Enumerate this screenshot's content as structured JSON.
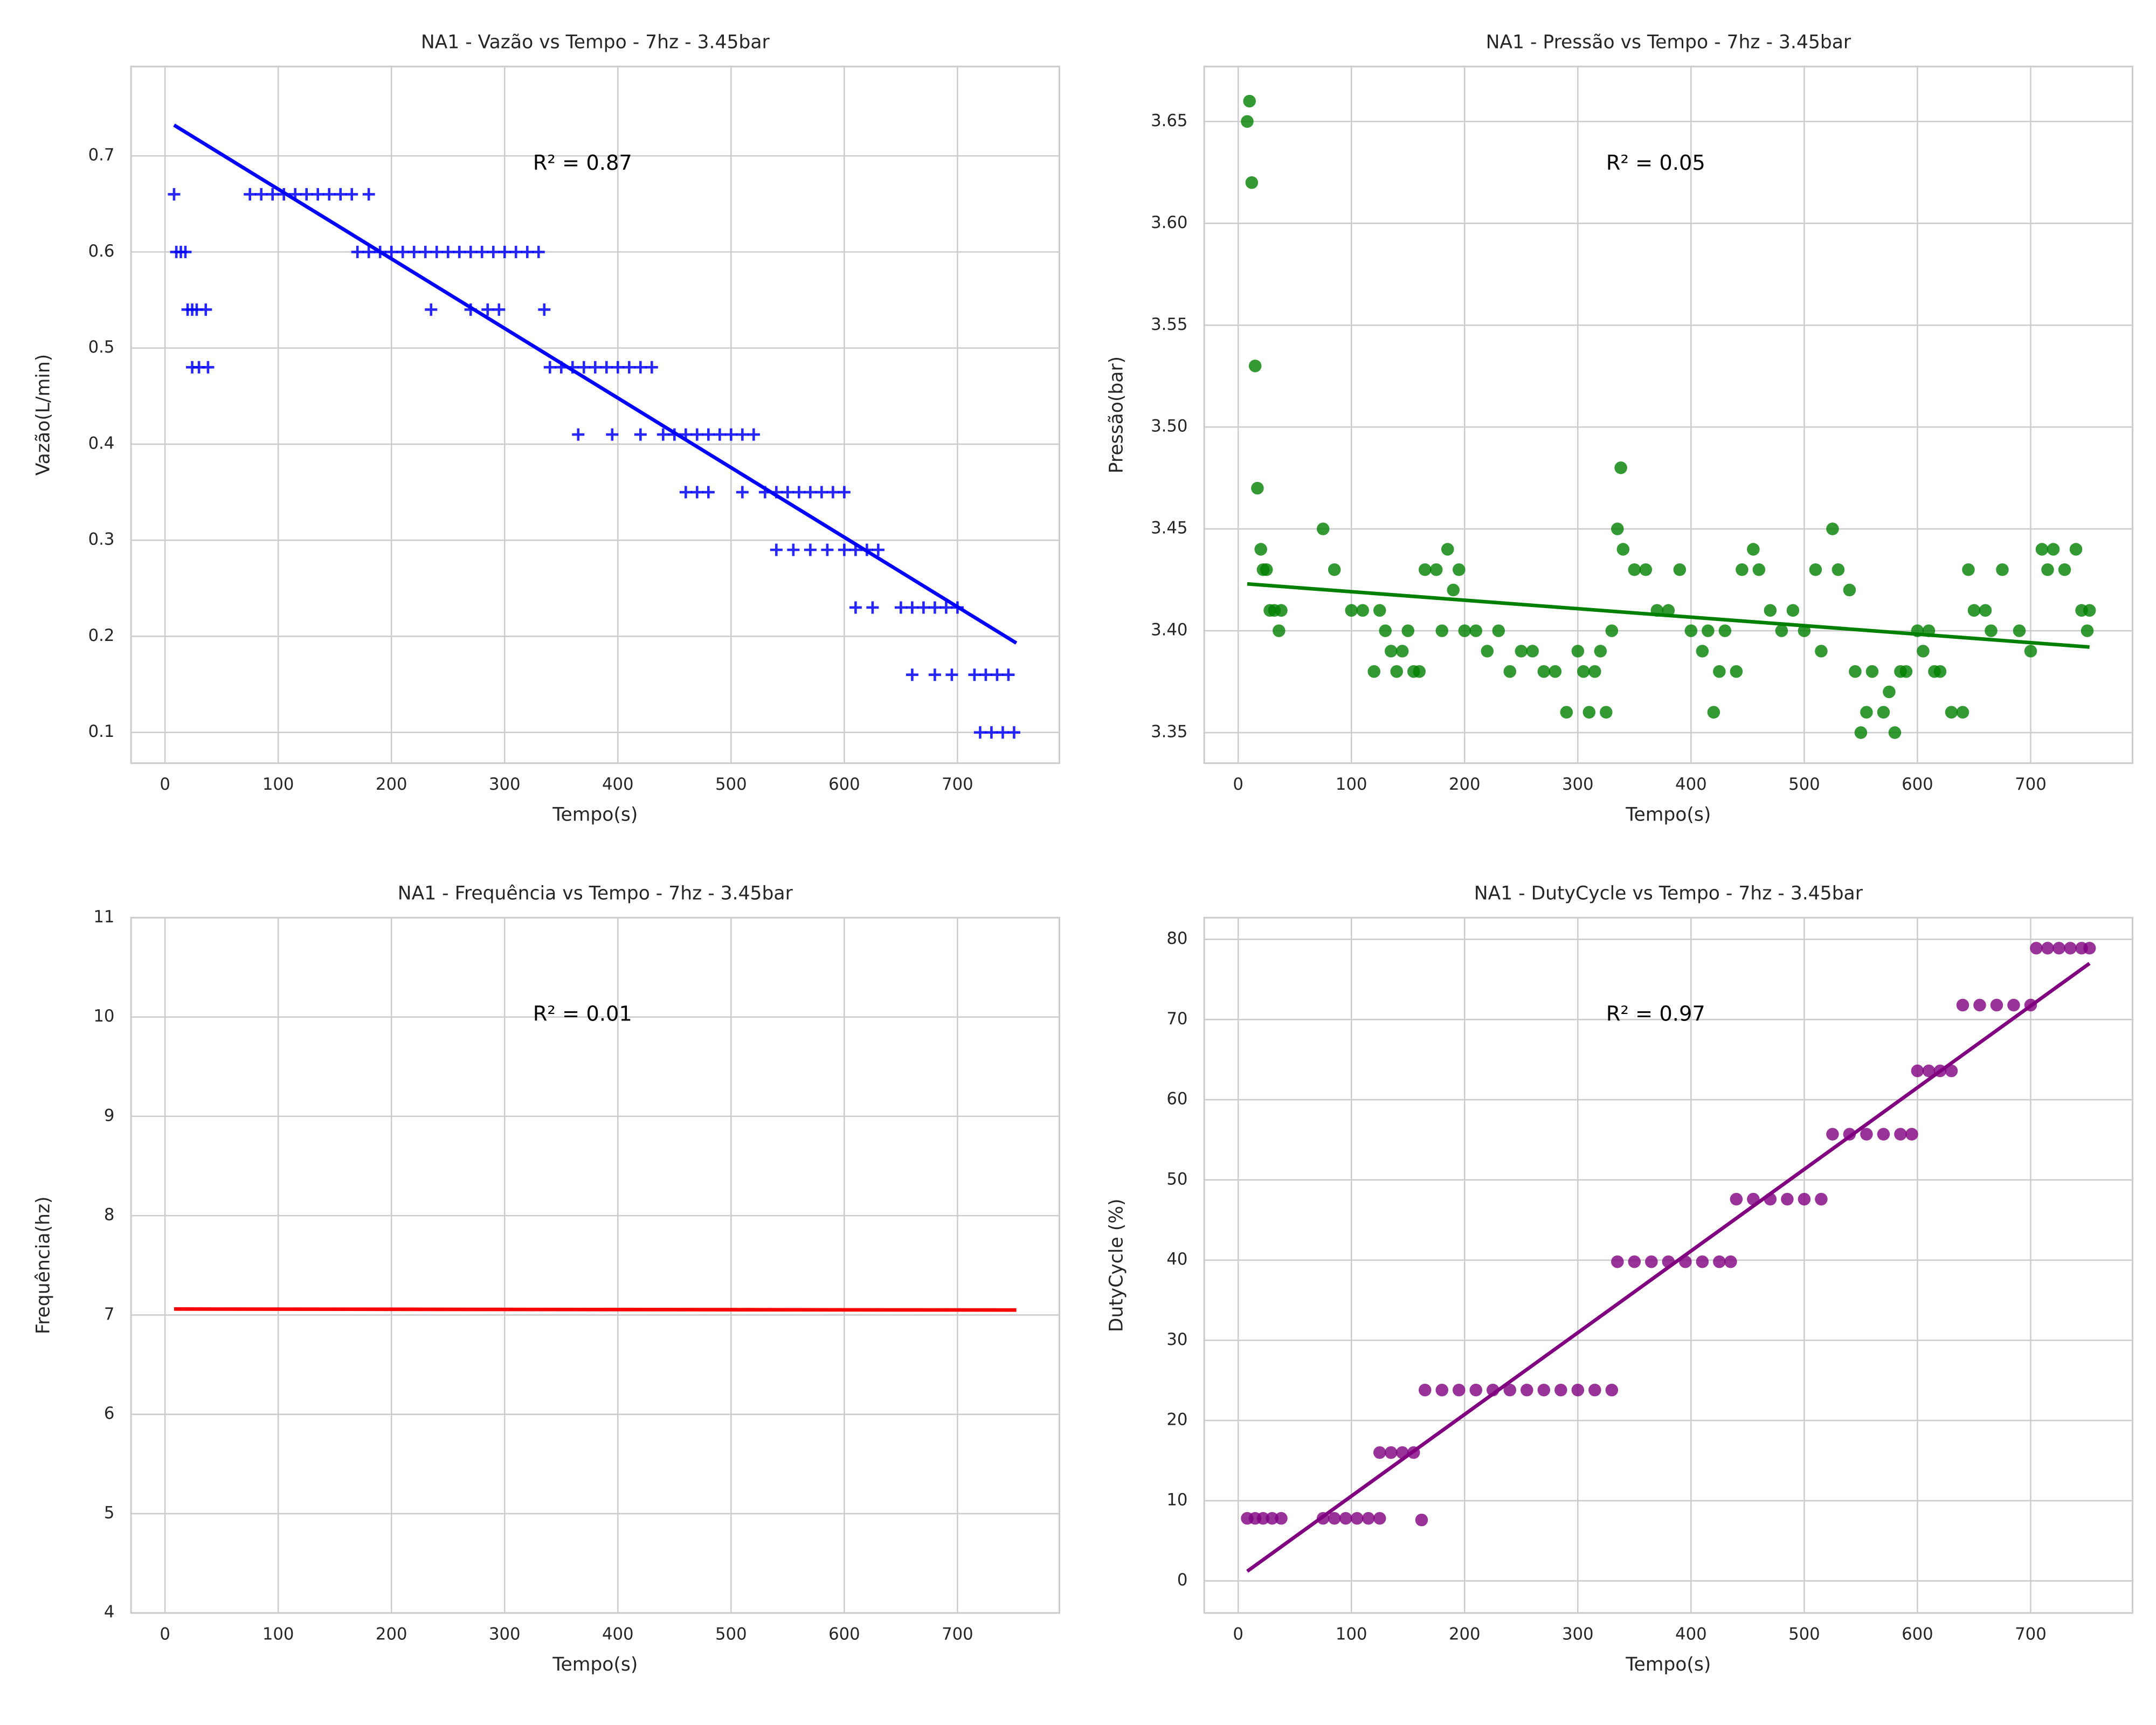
{
  "chart_data": [
    {
      "type": "scatter",
      "title": "NA1 - Vazão vs Tempo - 7hz - 3.45bar",
      "xlabel": "Tempo(s)",
      "ylabel": "Vazão(L/min)",
      "annotation": "R² = 0.87",
      "color": "#0000ff",
      "marker": "plus",
      "grid": true,
      "xlim": [
        -30,
        790
      ],
      "ylim": [
        0.068,
        0.793
      ],
      "xticks": [
        0,
        100,
        200,
        300,
        400,
        500,
        600,
        700
      ],
      "yticks": [
        0.1,
        0.2,
        0.3,
        0.4,
        0.5,
        0.6,
        0.7
      ],
      "x": [
        8,
        10,
        14,
        18,
        20,
        24,
        28,
        36,
        24,
        30,
        38,
        75,
        85,
        95,
        105,
        115,
        125,
        135,
        145,
        155,
        165,
        180,
        170,
        180,
        190,
        200,
        210,
        220,
        230,
        240,
        250,
        260,
        270,
        280,
        290,
        300,
        310,
        320,
        330,
        235,
        270,
        285,
        295,
        335,
        340,
        350,
        360,
        370,
        380,
        390,
        400,
        410,
        420,
        430,
        365,
        395,
        420,
        440,
        450,
        460,
        470,
        480,
        490,
        500,
        510,
        520,
        460,
        470,
        480,
        510,
        530,
        540,
        550,
        560,
        570,
        580,
        590,
        600,
        540,
        555,
        570,
        585,
        600,
        610,
        620,
        630,
        610,
        625,
        650,
        660,
        670,
        680,
        690,
        700,
        660,
        680,
        695,
        715,
        725,
        735,
        745,
        720,
        730,
        740,
        750
      ],
      "values": [
        0.66,
        0.6,
        0.6,
        0.6,
        0.54,
        0.54,
        0.54,
        0.54,
        0.48,
        0.48,
        0.48,
        0.66,
        0.66,
        0.66,
        0.66,
        0.66,
        0.66,
        0.66,
        0.66,
        0.66,
        0.66,
        0.66,
        0.6,
        0.6,
        0.6,
        0.6,
        0.6,
        0.6,
        0.6,
        0.6,
        0.6,
        0.6,
        0.6,
        0.6,
        0.6,
        0.6,
        0.6,
        0.6,
        0.6,
        0.54,
        0.54,
        0.54,
        0.54,
        0.54,
        0.48,
        0.48,
        0.48,
        0.48,
        0.48,
        0.48,
        0.48,
        0.48,
        0.48,
        0.48,
        0.41,
        0.41,
        0.41,
        0.41,
        0.41,
        0.41,
        0.41,
        0.41,
        0.41,
        0.41,
        0.41,
        0.41,
        0.35,
        0.35,
        0.35,
        0.35,
        0.35,
        0.35,
        0.35,
        0.35,
        0.35,
        0.35,
        0.35,
        0.35,
        0.29,
        0.29,
        0.29,
        0.29,
        0.29,
        0.29,
        0.29,
        0.29,
        0.23,
        0.23,
        0.23,
        0.23,
        0.23,
        0.23,
        0.23,
        0.23,
        0.16,
        0.16,
        0.16,
        0.16,
        0.16,
        0.16,
        0.16,
        0.1,
        0.1,
        0.1,
        0.1
      ],
      "fit": {
        "x": [
          8,
          752
        ],
        "values": [
          0.732,
          0.193
        ]
      }
    },
    {
      "type": "scatter",
      "title": "NA1 - Pressão vs Tempo - 7hz - 3.45bar",
      "xlabel": "Tempo(s)",
      "ylabel": "Pressão(bar)",
      "annotation": "R² = 0.05",
      "color": "#008000",
      "marker": "circle",
      "grid": true,
      "xlim": [
        -30,
        790
      ],
      "ylim": [
        3.335,
        3.677
      ],
      "xticks": [
        0,
        100,
        200,
        300,
        400,
        500,
        600,
        700
      ],
      "yticks": [
        3.35,
        {
          "value": 3.4,
          "label": "3.40"
        },
        3.45,
        {
          "value": 3.5,
          "label": "3.50"
        },
        3.55,
        {
          "value": 3.6,
          "label": "3.60"
        },
        3.65
      ],
      "x": [
        8,
        10,
        12,
        15,
        17,
        20,
        22,
        25,
        28,
        32,
        36,
        38,
        75,
        85,
        100,
        110,
        120,
        125,
        130,
        135,
        140,
        145,
        150,
        155,
        160,
        165,
        175,
        180,
        185,
        190,
        195,
        200,
        210,
        220,
        230,
        240,
        250,
        260,
        270,
        280,
        290,
        300,
        305,
        310,
        315,
        320,
        325,
        330,
        335,
        338,
        340,
        350,
        360,
        370,
        380,
        390,
        400,
        410,
        415,
        420,
        425,
        430,
        440,
        445,
        455,
        460,
        470,
        480,
        490,
        500,
        510,
        515,
        525,
        530,
        540,
        545,
        550,
        555,
        560,
        570,
        575,
        580,
        585,
        590,
        600,
        605,
        610,
        615,
        620,
        630,
        640,
        645,
        650,
        660,
        665,
        675,
        690,
        700,
        710,
        715,
        720,
        730,
        740,
        745,
        750,
        752
      ],
      "values": [
        3.65,
        3.66,
        3.62,
        3.53,
        3.47,
        3.44,
        3.43,
        3.43,
        3.41,
        3.41,
        3.4,
        3.41,
        3.45,
        3.43,
        3.41,
        3.41,
        3.38,
        3.41,
        3.4,
        3.39,
        3.38,
        3.39,
        3.4,
        3.38,
        3.38,
        3.43,
        3.43,
        3.4,
        3.44,
        3.42,
        3.43,
        3.4,
        3.4,
        3.39,
        3.4,
        3.38,
        3.39,
        3.39,
        3.38,
        3.38,
        3.36,
        3.39,
        3.38,
        3.36,
        3.38,
        3.39,
        3.36,
        3.4,
        3.45,
        3.48,
        3.44,
        3.43,
        3.43,
        3.41,
        3.41,
        3.43,
        3.4,
        3.39,
        3.4,
        3.36,
        3.38,
        3.4,
        3.38,
        3.43,
        3.44,
        3.43,
        3.41,
        3.4,
        3.41,
        3.4,
        3.43,
        3.39,
        3.45,
        3.43,
        3.42,
        3.38,
        3.35,
        3.36,
        3.38,
        3.36,
        3.37,
        3.35,
        3.38,
        3.38,
        3.4,
        3.39,
        3.4,
        3.38,
        3.38,
        3.36,
        3.36,
        3.43,
        3.41,
        3.41,
        3.4,
        3.43,
        3.4,
        3.39,
        3.44,
        3.43,
        3.44,
        3.43,
        3.44,
        3.41,
        3.4,
        3.41
      ],
      "fit": {
        "x": [
          8,
          752
        ],
        "values": [
          3.423,
          3.392
        ]
      }
    },
    {
      "type": "scatter",
      "title": "NA1 - Frequência vs Tempo - 7hz - 3.45bar",
      "xlabel": "Tempo(s)",
      "ylabel": "Frequência(hz)",
      "annotation": "R² = 0.01",
      "color": "#ff0000",
      "marker": "circle",
      "grid": true,
      "xlim": [
        -30,
        790
      ],
      "ylim": [
        4,
        11
      ],
      "xticks": [
        0,
        100,
        200,
        300,
        400,
        500,
        600,
        700
      ],
      "yticks": [
        4,
        5,
        6,
        7,
        8,
        9,
        10,
        11
      ],
      "fit": {
        "x": [
          8,
          752
        ],
        "values": [
          7.06,
          7.05
        ]
      }
    },
    {
      "type": "scatter",
      "title": "NA1 - DutyCycle vs Tempo - 7hz - 3.45bar",
      "xlabel": "Tempo(s)",
      "ylabel": "DutyCycle (%)",
      "annotation": "R² = 0.97",
      "color": "#800080",
      "marker": "circle",
      "grid": true,
      "xlim": [
        -30,
        790
      ],
      "ylim": [
        -4,
        82.7
      ],
      "xticks": [
        0,
        100,
        200,
        300,
        400,
        500,
        600,
        700
      ],
      "yticks": [
        0,
        10,
        20,
        30,
        40,
        50,
        60,
        70,
        80
      ],
      "x": [
        8,
        15,
        22,
        30,
        38,
        75,
        85,
        95,
        105,
        115,
        125,
        125,
        135,
        145,
        155,
        162,
        165,
        180,
        195,
        210,
        225,
        240,
        255,
        270,
        285,
        300,
        315,
        330,
        335,
        350,
        365,
        380,
        395,
        410,
        425,
        435,
        440,
        455,
        470,
        485,
        500,
        515,
        525,
        540,
        555,
        570,
        585,
        595,
        600,
        610,
        620,
        630,
        640,
        655,
        670,
        685,
        700,
        705,
        715,
        725,
        735,
        745,
        752
      ],
      "values": [
        7.8,
        7.8,
        7.8,
        7.8,
        7.8,
        7.8,
        7.8,
        7.8,
        7.8,
        7.8,
        7.8,
        16,
        16,
        16,
        16,
        7.6,
        23.8,
        23.8,
        23.8,
        23.8,
        23.8,
        23.8,
        23.8,
        23.8,
        23.8,
        23.8,
        23.8,
        23.8,
        39.8,
        39.8,
        39.8,
        39.8,
        39.8,
        39.8,
        39.8,
        39.8,
        47.6,
        47.6,
        47.6,
        47.6,
        47.6,
        47.6,
        55.7,
        55.7,
        55.7,
        55.7,
        55.7,
        55.7,
        63.6,
        63.6,
        63.6,
        63.6,
        71.8,
        71.8,
        71.8,
        71.8,
        71.8,
        78.9,
        78.9,
        78.9,
        78.9,
        78.9,
        78.9
      ],
      "fit": {
        "x": [
          8,
          752
        ],
        "values": [
          1.2,
          77
        ]
      }
    }
  ]
}
